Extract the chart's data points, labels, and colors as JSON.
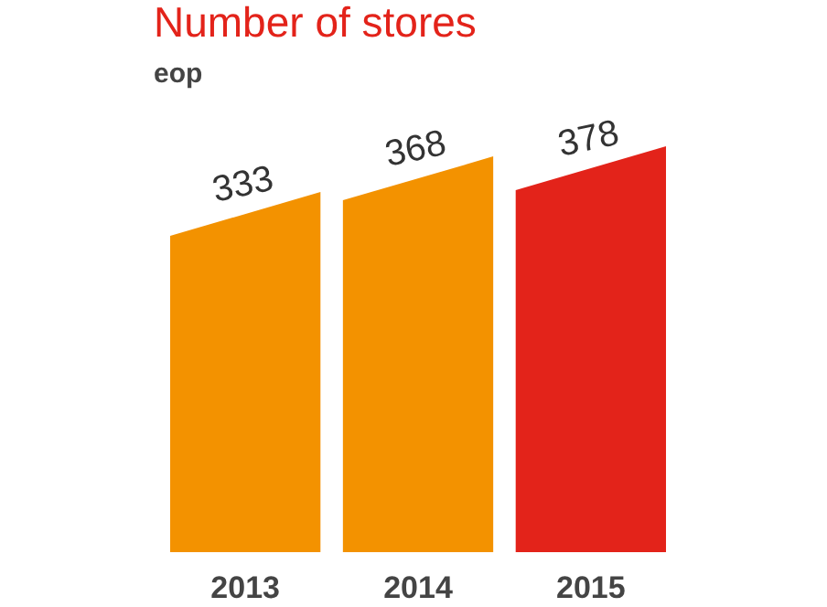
{
  "chart_data": {
    "type": "bar",
    "title": "Number of stores",
    "subtitle": "eop",
    "categories": [
      "2013",
      "2014",
      "2015"
    ],
    "values": [
      333,
      368,
      378
    ],
    "colors": [
      "#f39200",
      "#f39200",
      "#e3231a"
    ],
    "data_labels": true
  }
}
